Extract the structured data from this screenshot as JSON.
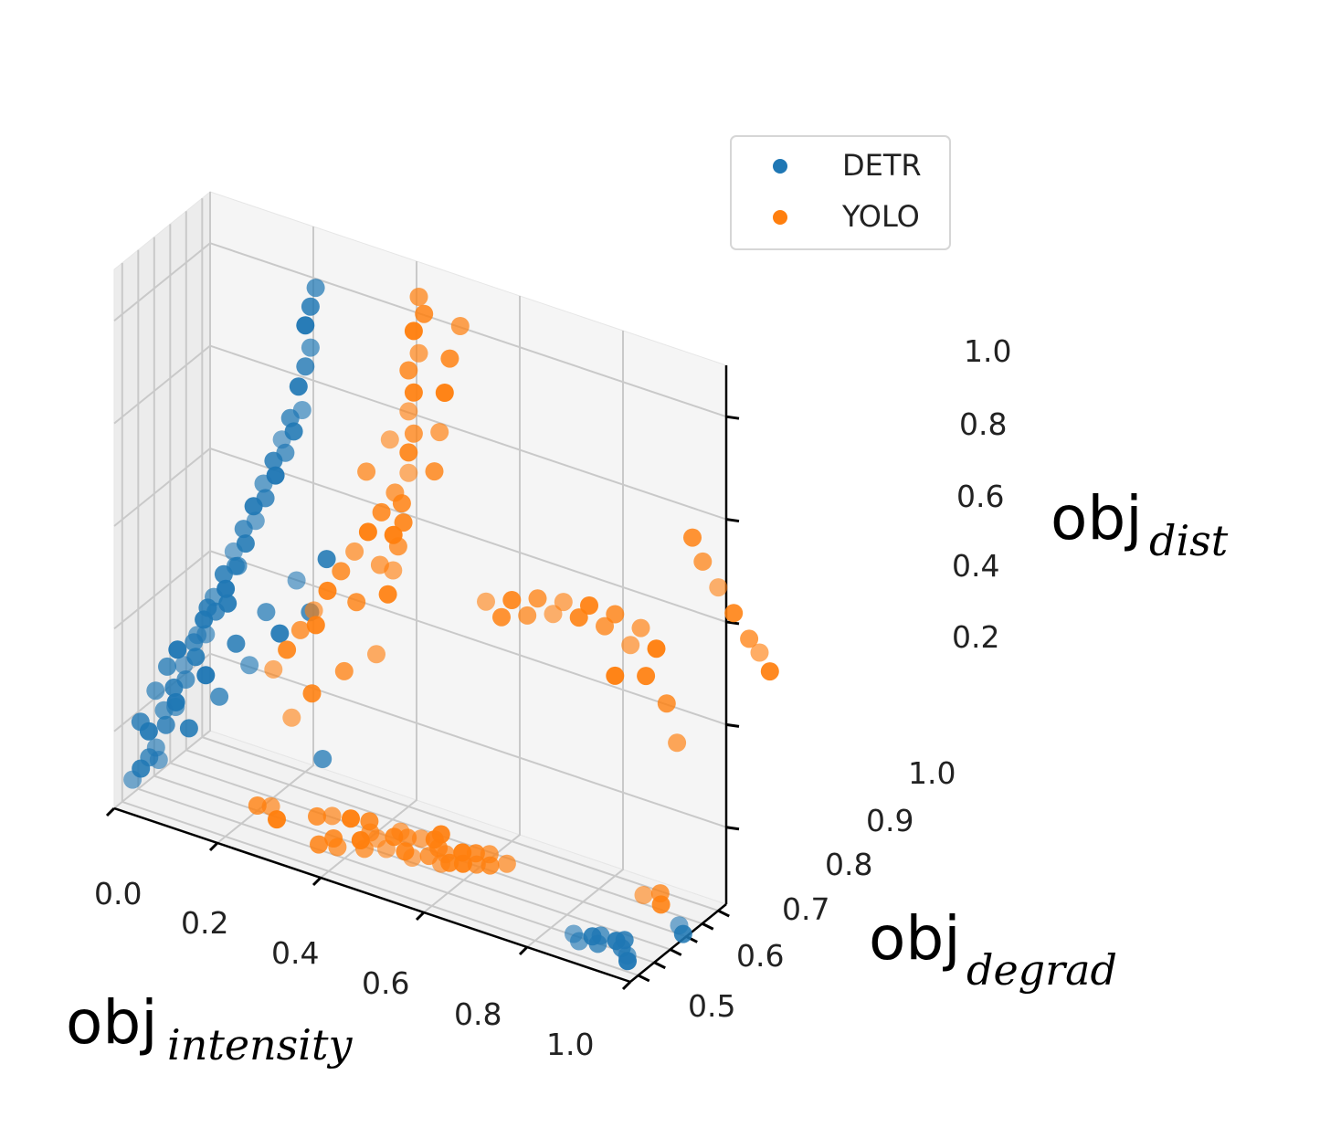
{
  "chart_data": {
    "type": "scatter3d",
    "title": "",
    "xlabel": {
      "base": "obj",
      "sub": "intensity"
    },
    "ylabel": {
      "base": "obj",
      "sub": "degrad"
    },
    "zlabel": {
      "base": "obj",
      "sub": "dist"
    },
    "xlim": [
      0.0,
      1.0
    ],
    "ylim": [
      0.45,
      1.05
    ],
    "zlim": [
      0.05,
      1.1
    ],
    "x_ticks": [
      "0.0",
      "0.2",
      "0.4",
      "0.6",
      "0.8",
      "1.0"
    ],
    "y_ticks": [
      "0.5",
      "0.6",
      "0.7",
      "0.8",
      "0.9",
      "1.0"
    ],
    "z_ticks": [
      "0.2",
      "0.4",
      "0.6",
      "0.8",
      "1.0"
    ],
    "grid": true,
    "legend": {
      "location": "top-right",
      "entries": [
        "DETR",
        "YOLO"
      ]
    },
    "colors": {
      "DETR": "#1f77b4",
      "YOLO": "#ff7f0e",
      "pane": "#f2f2f2",
      "grid": "#c9c9c9"
    },
    "series": [
      {
        "name": "DETR",
        "color": "#1f77b4",
        "points": [
          [
            0.02,
            0.5,
            0.1
          ],
          [
            0.03,
            0.52,
            0.12
          ],
          [
            0.04,
            0.54,
            0.14
          ],
          [
            0.05,
            0.55,
            0.16
          ],
          [
            0.03,
            0.57,
            0.18
          ],
          [
            0.06,
            0.58,
            0.2
          ],
          [
            0.05,
            0.6,
            0.22
          ],
          [
            0.07,
            0.61,
            0.24
          ],
          [
            0.06,
            0.63,
            0.26
          ],
          [
            0.08,
            0.64,
            0.28
          ],
          [
            0.07,
            0.66,
            0.3
          ],
          [
            0.09,
            0.67,
            0.32
          ],
          [
            0.08,
            0.69,
            0.34
          ],
          [
            0.1,
            0.7,
            0.36
          ],
          [
            0.09,
            0.72,
            0.38
          ],
          [
            0.11,
            0.73,
            0.4
          ],
          [
            0.1,
            0.75,
            0.42
          ],
          [
            0.12,
            0.76,
            0.44
          ],
          [
            0.11,
            0.78,
            0.46
          ],
          [
            0.13,
            0.79,
            0.48
          ],
          [
            0.12,
            0.81,
            0.5
          ],
          [
            0.14,
            0.82,
            0.52
          ],
          [
            0.13,
            0.84,
            0.54
          ],
          [
            0.15,
            0.85,
            0.56
          ],
          [
            0.14,
            0.87,
            0.58
          ],
          [
            0.16,
            0.88,
            0.6
          ],
          [
            0.15,
            0.9,
            0.62
          ],
          [
            0.17,
            0.91,
            0.64
          ],
          [
            0.16,
            0.93,
            0.66
          ],
          [
            0.18,
            0.94,
            0.68
          ],
          [
            0.17,
            0.95,
            0.7
          ],
          [
            0.19,
            0.96,
            0.72
          ],
          [
            0.18,
            0.97,
            0.74
          ],
          [
            0.2,
            0.98,
            0.76
          ],
          [
            0.19,
            0.99,
            0.8
          ],
          [
            0.2,
            1.0,
            0.84
          ],
          [
            0.21,
            1.0,
            0.88
          ],
          [
            0.2,
            1.0,
            0.92
          ],
          [
            0.21,
            1.0,
            0.96
          ],
          [
            0.22,
            1.0,
            1.0
          ],
          [
            0.04,
            0.6,
            0.12
          ],
          [
            0.08,
            0.66,
            0.18
          ],
          [
            0.12,
            0.72,
            0.24
          ],
          [
            0.16,
            0.78,
            0.3
          ],
          [
            0.2,
            0.84,
            0.36
          ],
          [
            0.24,
            0.9,
            0.4
          ],
          [
            0.06,
            0.64,
            0.22
          ],
          [
            0.1,
            0.7,
            0.28
          ],
          [
            0.14,
            0.76,
            0.34
          ],
          [
            0.18,
            0.82,
            0.4
          ],
          [
            0.22,
            0.88,
            0.46
          ],
          [
            0.26,
            0.94,
            0.5
          ],
          [
            0.05,
            0.62,
            0.3
          ],
          [
            0.09,
            0.68,
            0.36
          ],
          [
            0.13,
            0.74,
            0.42
          ],
          [
            0.02,
            0.55,
            0.2
          ],
          [
            0.04,
            0.58,
            0.26
          ],
          [
            0.07,
            0.62,
            0.34
          ],
          [
            0.11,
            0.68,
            0.42
          ],
          [
            0.15,
            0.74,
            0.5
          ],
          [
            0.85,
            0.58,
            0.06
          ],
          [
            0.88,
            0.6,
            0.06
          ],
          [
            0.9,
            0.57,
            0.06
          ],
          [
            0.87,
            0.55,
            0.06
          ],
          [
            0.92,
            0.62,
            0.06
          ],
          [
            0.94,
            0.59,
            0.06
          ],
          [
            0.96,
            0.56,
            0.06
          ],
          [
            0.97,
            0.53,
            0.06
          ],
          [
            0.93,
            0.64,
            0.06
          ],
          [
            0.89,
            0.62,
            0.06
          ],
          [
            0.98,
            0.82,
            0.06
          ],
          [
            1.0,
            0.78,
            0.06
          ],
          [
            0.28,
            0.85,
            0.14
          ]
        ]
      },
      {
        "name": "YOLO",
        "color": "#ff7f0e",
        "points": [
          [
            0.2,
            0.8,
            0.3
          ],
          [
            0.22,
            0.82,
            0.34
          ],
          [
            0.24,
            0.84,
            0.38
          ],
          [
            0.26,
            0.86,
            0.42
          ],
          [
            0.28,
            0.88,
            0.46
          ],
          [
            0.3,
            0.9,
            0.5
          ],
          [
            0.32,
            0.92,
            0.54
          ],
          [
            0.34,
            0.94,
            0.58
          ],
          [
            0.36,
            0.96,
            0.62
          ],
          [
            0.38,
            0.98,
            0.66
          ],
          [
            0.4,
            1.0,
            0.7
          ],
          [
            0.4,
            1.0,
            0.74
          ],
          [
            0.41,
            1.0,
            0.78
          ],
          [
            0.4,
            1.0,
            0.82
          ],
          [
            0.41,
            1.0,
            0.86
          ],
          [
            0.4,
            1.0,
            0.9
          ],
          [
            0.42,
            1.0,
            0.94
          ],
          [
            0.41,
            1.0,
            0.98
          ],
          [
            0.43,
            1.0,
            1.02
          ],
          [
            0.42,
            1.0,
            1.05
          ],
          [
            0.22,
            0.85,
            0.2
          ],
          [
            0.25,
            0.88,
            0.25
          ],
          [
            0.3,
            0.92,
            0.3
          ],
          [
            0.35,
            0.96,
            0.34
          ],
          [
            0.27,
            0.84,
            0.4
          ],
          [
            0.33,
            0.9,
            0.45
          ],
          [
            0.36,
            0.95,
            0.52
          ],
          [
            0.38,
            0.97,
            0.58
          ],
          [
            0.39,
            0.99,
            0.64
          ],
          [
            0.34,
            0.93,
            0.7
          ],
          [
            0.37,
            0.98,
            0.76
          ],
          [
            0.39,
            1.0,
            0.6
          ],
          [
            0.38,
            1.0,
            0.55
          ],
          [
            0.37,
            1.0,
            0.5
          ],
          [
            0.36,
            1.0,
            0.45
          ],
          [
            0.45,
            1.0,
            0.72
          ],
          [
            0.46,
            1.0,
            0.8
          ],
          [
            0.47,
            1.0,
            0.88
          ],
          [
            0.48,
            1.0,
            0.95
          ],
          [
            0.5,
            1.0,
            1.02
          ],
          [
            0.55,
            1.0,
            0.5
          ],
          [
            0.6,
            1.0,
            0.52
          ],
          [
            0.65,
            1.0,
            0.54
          ],
          [
            0.7,
            1.0,
            0.55
          ],
          [
            0.75,
            1.0,
            0.56
          ],
          [
            0.8,
            1.0,
            0.56
          ],
          [
            0.85,
            1.0,
            0.55
          ],
          [
            0.88,
            1.0,
            0.52
          ],
          [
            0.58,
            1.0,
            0.48
          ],
          [
            0.63,
            1.0,
            0.5
          ],
          [
            0.68,
            1.0,
            0.52
          ],
          [
            0.73,
            1.0,
            0.53
          ],
          [
            0.78,
            1.0,
            0.53
          ],
          [
            0.83,
            1.0,
            0.51
          ],
          [
            0.86,
            1.0,
            0.46
          ],
          [
            0.9,
            1.0,
            0.42
          ],
          [
            0.92,
            1.0,
            0.35
          ],
          [
            0.8,
            1.0,
            0.44
          ],
          [
            0.95,
            1.0,
            0.76
          ],
          [
            0.97,
            1.0,
            0.72
          ],
          [
            1.0,
            1.0,
            0.68
          ],
          [
            1.03,
            1.0,
            0.64
          ],
          [
            1.06,
            1.0,
            0.6
          ],
          [
            1.08,
            1.0,
            0.58
          ],
          [
            1.1,
            1.0,
            0.55
          ],
          [
            0.3,
            0.75,
            0.06
          ],
          [
            0.32,
            0.78,
            0.06
          ],
          [
            0.35,
            0.8,
            0.06
          ],
          [
            0.38,
            0.82,
            0.06
          ],
          [
            0.4,
            0.76,
            0.06
          ],
          [
            0.42,
            0.74,
            0.06
          ],
          [
            0.44,
            0.78,
            0.06
          ],
          [
            0.46,
            0.8,
            0.06
          ],
          [
            0.48,
            0.82,
            0.06
          ],
          [
            0.5,
            0.84,
            0.06
          ],
          [
            0.52,
            0.8,
            0.06
          ],
          [
            0.54,
            0.78,
            0.06
          ],
          [
            0.56,
            0.82,
            0.06
          ],
          [
            0.58,
            0.84,
            0.06
          ],
          [
            0.6,
            0.86,
            0.06
          ],
          [
            0.45,
            0.7,
            0.06
          ],
          [
            0.48,
            0.72,
            0.06
          ],
          [
            0.52,
            0.74,
            0.06
          ],
          [
            0.55,
            0.72,
            0.06
          ],
          [
            0.58,
            0.76,
            0.06
          ],
          [
            0.62,
            0.8,
            0.06
          ],
          [
            0.64,
            0.84,
            0.06
          ],
          [
            0.4,
            0.7,
            0.06
          ],
          [
            0.36,
            0.66,
            0.06
          ],
          [
            0.42,
            0.66,
            0.06
          ],
          [
            0.5,
            0.7,
            0.06
          ],
          [
            0.56,
            0.74,
            0.06
          ],
          [
            0.6,
            0.78,
            0.06
          ],
          [
            0.44,
            0.82,
            0.06
          ],
          [
            0.5,
            0.88,
            0.06
          ],
          [
            0.2,
            0.7,
            0.06
          ],
          [
            0.22,
            0.72,
            0.06
          ],
          [
            0.25,
            0.66,
            0.06
          ],
          [
            0.35,
            0.6,
            0.06
          ],
          [
            0.38,
            0.62,
            0.06
          ],
          [
            0.88,
            0.92,
            0.06
          ],
          [
            0.92,
            0.9,
            0.06
          ],
          [
            0.9,
            0.96,
            0.06
          ]
        ]
      }
    ]
  }
}
